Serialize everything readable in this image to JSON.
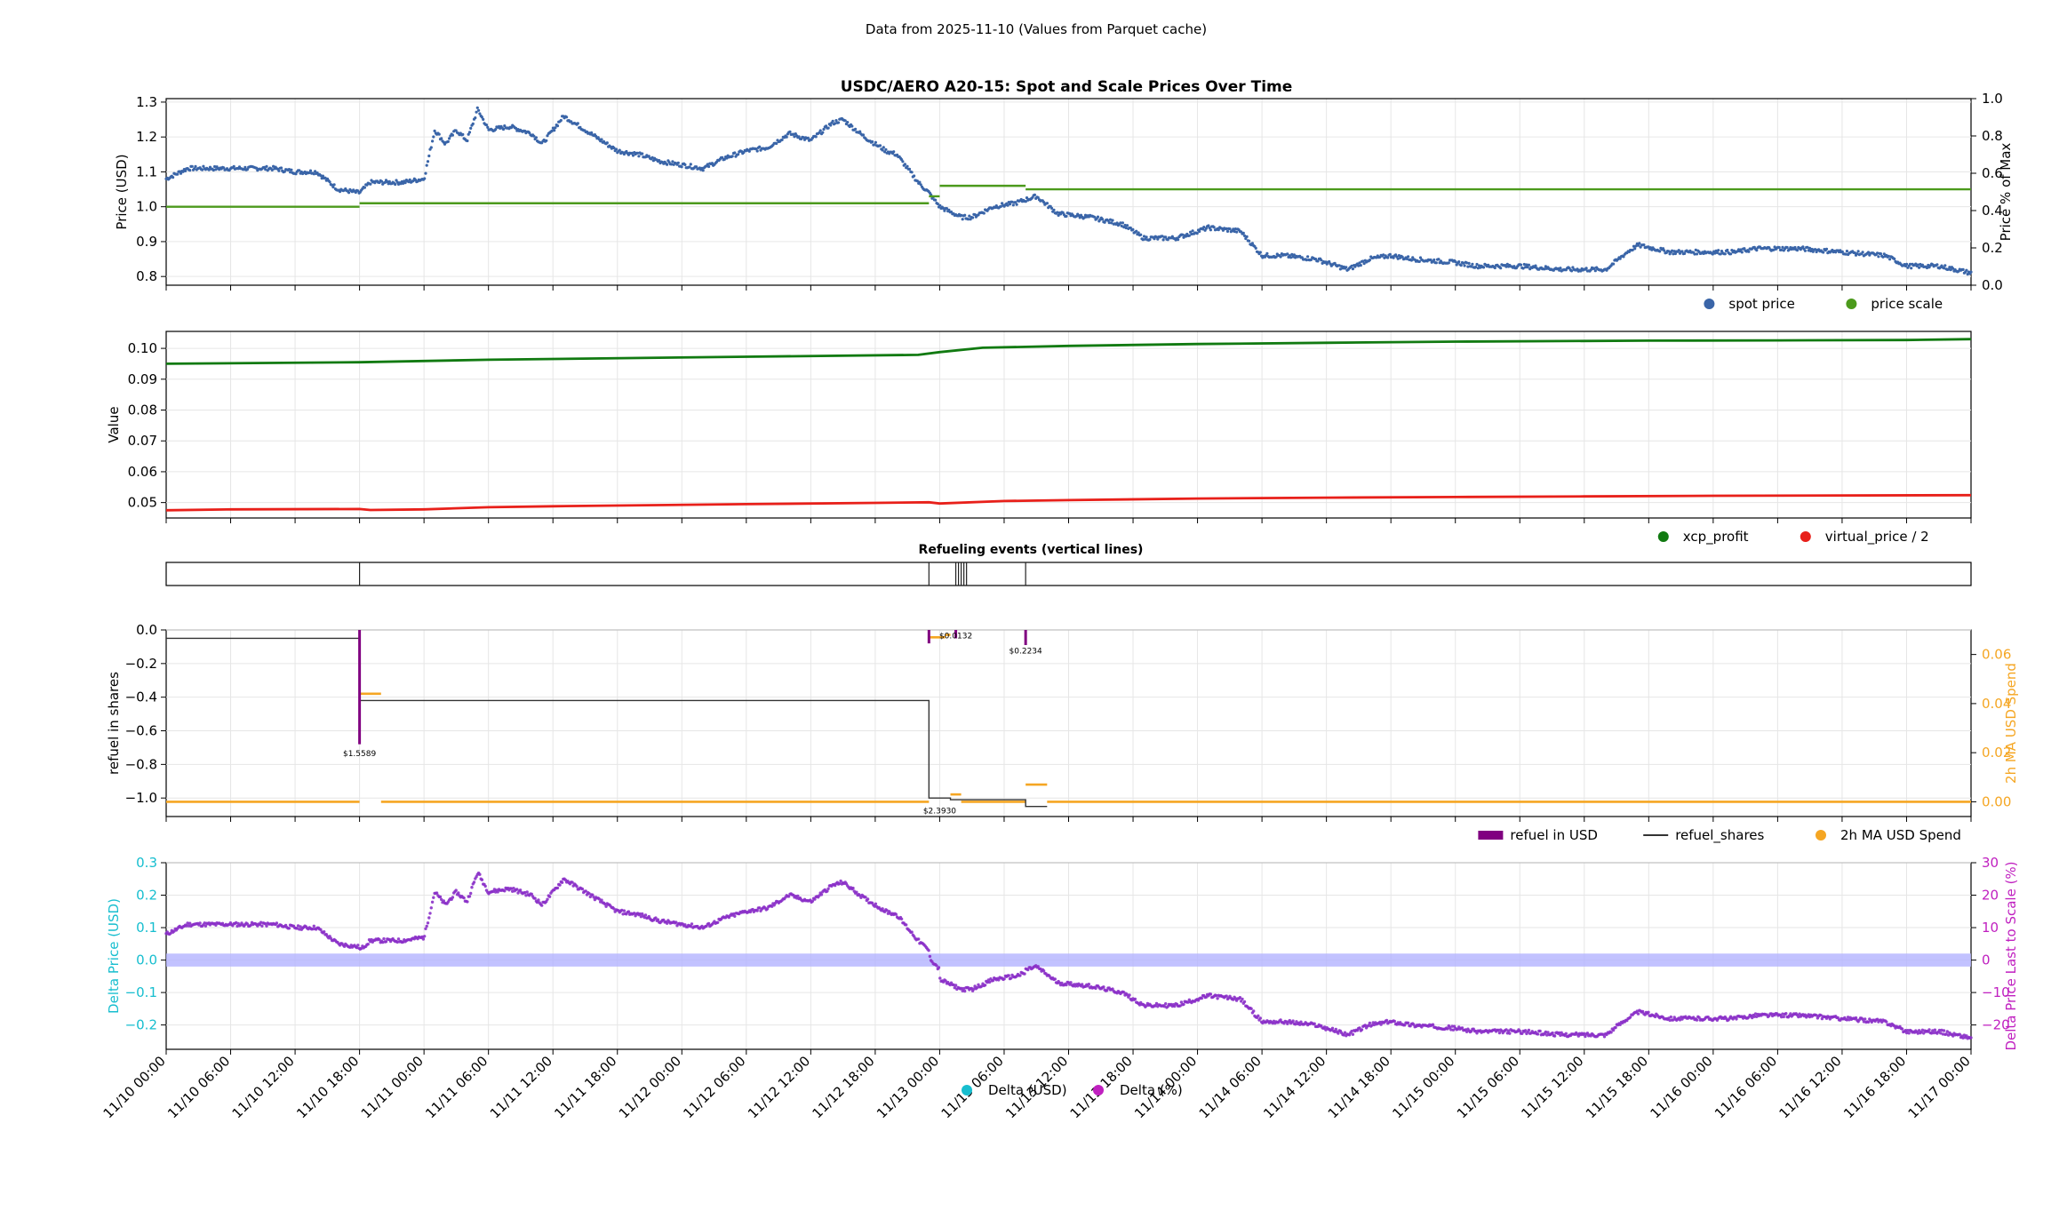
{
  "figure": {
    "suptitle": "Data from 2025-11-10 (Values from Parquet cache)",
    "x_start": "2025-11-10 00:00",
    "x_end": "2025-11-17 00:00",
    "x_tick_labels": [
      "11/10 00:00",
      "11/10 06:00",
      "11/10 12:00",
      "11/10 18:00",
      "11/11 00:00",
      "11/11 06:00",
      "11/11 12:00",
      "11/11 18:00",
      "11/12 00:00",
      "11/12 06:00",
      "11/12 12:00",
      "11/12 18:00",
      "11/13 00:00",
      "11/13 06:00",
      "11/13 12:00",
      "11/13 18:00",
      "11/14 00:00",
      "11/14 06:00",
      "11/14 12:00",
      "11/14 18:00",
      "11/15 00:00",
      "11/15 06:00",
      "11/15 12:00",
      "11/15 18:00",
      "11/16 00:00",
      "11/16 06:00",
      "11/16 12:00",
      "11/16 18:00",
      "11/17 00:00"
    ]
  },
  "chart_data": [
    {
      "type": "scatter",
      "title": "USDC/AERO A20-15: Spot and Scale Prices Over Time",
      "ylabel": "Price (USD)",
      "ylabel_right": "Price % of Max",
      "ylim": [
        0.775,
        1.31
      ],
      "y_ticks": [
        "0.8",
        "0.9",
        "1.0",
        "1.1",
        "1.2",
        "1.3"
      ],
      "ylim_right": [
        0,
        1
      ],
      "y_ticks_right": [
        "0.0",
        "0.2",
        "0.4",
        "0.6",
        "0.8",
        "1.0"
      ],
      "grid": true,
      "legend_position": "below-right",
      "series": [
        {
          "name": "spot price",
          "color": "#3a65a8",
          "points": [
            [
              "11/10 00:00",
              1.08
            ],
            [
              "11/10 02:00",
              1.11
            ],
            [
              "11/10 04:00",
              1.11
            ],
            [
              "11/10 06:00",
              1.11
            ],
            [
              "11/10 08:00",
              1.11
            ],
            [
              "11/10 10:00",
              1.11
            ],
            [
              "11/10 12:00",
              1.1
            ],
            [
              "11/10 14:00",
              1.1
            ],
            [
              "11/10 16:00",
              1.05
            ],
            [
              "11/10 18:00",
              1.04
            ],
            [
              "11/10 19:00",
              1.07
            ],
            [
              "11/10 22:00",
              1.07
            ],
            [
              "11/11 00:00",
              1.08
            ],
            [
              "11/11 01:00",
              1.22
            ],
            [
              "11/11 02:00",
              1.18
            ],
            [
              "11/11 03:00",
              1.22
            ],
            [
              "11/11 04:00",
              1.19
            ],
            [
              "11/11 05:00",
              1.28
            ],
            [
              "11/11 06:00",
              1.22
            ],
            [
              "11/11 08:00",
              1.23
            ],
            [
              "11/11 10:00",
              1.21
            ],
            [
              "11/11 11:00",
              1.18
            ],
            [
              "11/11 13:00",
              1.26
            ],
            [
              "11/11 14:00",
              1.24
            ],
            [
              "11/11 16:00",
              1.2
            ],
            [
              "11/11 18:00",
              1.16
            ],
            [
              "11/11 20:00",
              1.15
            ],
            [
              "11/11 22:00",
              1.13
            ],
            [
              "11/12 00:00",
              1.12
            ],
            [
              "11/12 02:00",
              1.11
            ],
            [
              "11/12 04:00",
              1.14
            ],
            [
              "11/12 06:00",
              1.16
            ],
            [
              "11/12 08:00",
              1.17
            ],
            [
              "11/12 10:00",
              1.21
            ],
            [
              "11/12 12:00",
              1.19
            ],
            [
              "11/12 14:00",
              1.24
            ],
            [
              "11/12 15:00",
              1.25
            ],
            [
              "11/12 17:00",
              1.2
            ],
            [
              "11/12 19:00",
              1.16
            ],
            [
              "11/12 20:00",
              1.15
            ],
            [
              "11/12 22:00",
              1.07
            ],
            [
              "11/12 23:00",
              1.04
            ],
            [
              "11/13 00:00",
              1.0
            ],
            [
              "11/13 02:00",
              0.97
            ],
            [
              "11/13 03:00",
              0.97
            ],
            [
              "11/13 05:00",
              1.0
            ],
            [
              "11/13 07:00",
              1.01
            ],
            [
              "11/13 09:00",
              1.03
            ],
            [
              "11/13 11:00",
              0.98
            ],
            [
              "11/13 14:00",
              0.97
            ],
            [
              "11/13 17:00",
              0.95
            ],
            [
              "11/13 19:00",
              0.91
            ],
            [
              "11/13 22:00",
              0.91
            ],
            [
              "11/14 01:00",
              0.94
            ],
            [
              "11/14 04:00",
              0.93
            ],
            [
              "11/14 06:00",
              0.86
            ],
            [
              "11/14 08:00",
              0.86
            ],
            [
              "11/14 11:00",
              0.85
            ],
            [
              "11/14 14:00",
              0.82
            ],
            [
              "11/14 16:00",
              0.85
            ],
            [
              "11/14 18:00",
              0.86
            ],
            [
              "11/14 20:00",
              0.85
            ],
            [
              "11/15 00:00",
              0.84
            ],
            [
              "11/15 02:00",
              0.83
            ],
            [
              "11/15 06:00",
              0.83
            ],
            [
              "11/15 10:00",
              0.82
            ],
            [
              "11/15 14:00",
              0.82
            ],
            [
              "11/15 16:00",
              0.87
            ],
            [
              "11/15 17:00",
              0.89
            ],
            [
              "11/15 20:00",
              0.87
            ],
            [
              "11/16 00:00",
              0.87
            ],
            [
              "11/16 02:00",
              0.87
            ],
            [
              "11/16 04:00",
              0.88
            ],
            [
              "11/16 08:00",
              0.88
            ],
            [
              "11/16 12:00",
              0.87
            ],
            [
              "11/16 16:00",
              0.86
            ],
            [
              "11/16 18:00",
              0.83
            ],
            [
              "11/16 21:00",
              0.83
            ],
            [
              "11/17 00:00",
              0.81
            ]
          ]
        },
        {
          "name": "price scale",
          "color": "#4c9a1c",
          "steps": [
            [
              "11/10 00:00",
              1.0
            ],
            [
              "11/10 18:00",
              1.01
            ],
            [
              "11/12 23:00",
              1.03
            ],
            [
              "11/13 00:00",
              1.06
            ],
            [
              "11/13 01:00",
              1.06
            ],
            [
              "11/13 08:00",
              1.05
            ],
            [
              "11/17 00:00",
              1.05
            ]
          ]
        }
      ]
    },
    {
      "type": "line",
      "ylabel": "Value",
      "ylim": [
        0.045,
        0.1055
      ],
      "y_ticks": [
        "0.05",
        "0.06",
        "0.07",
        "0.08",
        "0.09",
        "0.10"
      ],
      "grid": true,
      "legend_position": "below-right",
      "series": [
        {
          "name": "xcp_profit",
          "color": "#117a11",
          "points": [
            [
              "11/10 00:00",
              0.095
            ],
            [
              "11/10 18:00",
              0.0955
            ],
            [
              "11/11 06:00",
              0.0963
            ],
            [
              "11/12 06:00",
              0.0973
            ],
            [
              "11/12 22:00",
              0.0979
            ],
            [
              "11/13 00:00",
              0.0988
            ],
            [
              "11/13 04:00",
              0.1002
            ],
            [
              "11/13 12:00",
              0.1008
            ],
            [
              "11/14 00:00",
              0.1014
            ],
            [
              "11/14 12:00",
              0.1018
            ],
            [
              "11/15 00:00",
              0.1022
            ],
            [
              "11/15 18:00",
              0.1025
            ],
            [
              "11/16 06:00",
              0.1026
            ],
            [
              "11/16 18:00",
              0.1027
            ],
            [
              "11/17 00:00",
              0.103
            ]
          ]
        },
        {
          "name": "virtual_price / 2",
          "color": "#e8201a",
          "points": [
            [
              "11/10 00:00",
              0.0475
            ],
            [
              "11/10 06:00",
              0.0478
            ],
            [
              "11/10 18:00",
              0.0479
            ],
            [
              "11/10 19:00",
              0.0476
            ],
            [
              "11/11 00:00",
              0.0478
            ],
            [
              "11/11 06:00",
              0.0485
            ],
            [
              "11/11 12:00",
              0.0488
            ],
            [
              "11/12 06:00",
              0.0495
            ],
            [
              "11/12 18:00",
              0.0499
            ],
            [
              "11/12 23:00",
              0.0501
            ],
            [
              "11/13 00:00",
              0.0497
            ],
            [
              "11/13 06:00",
              0.0505
            ],
            [
              "11/13 12:00",
              0.0508
            ],
            [
              "11/14 00:00",
              0.0513
            ],
            [
              "11/14 12:00",
              0.0516
            ],
            [
              "11/15 00:00",
              0.0518
            ],
            [
              "11/15 12:00",
              0.052
            ],
            [
              "11/16 00:00",
              0.0522
            ],
            [
              "11/17 00:00",
              0.0524
            ]
          ]
        }
      ]
    },
    {
      "type": "event-strip",
      "title": "Refueling events (vertical lines)",
      "events": [
        "11/10 18:00",
        "11/12 23:00",
        "11/13 01:30",
        "11/13 01:45",
        "11/13 02:00",
        "11/13 02:15",
        "11/13 02:30",
        "11/13 08:00"
      ]
    },
    {
      "type": "bar",
      "ylabel": "refuel in shares",
      "ylabel_right": "2h MA USD Spend",
      "ylim": [
        -1.11,
        0.0
      ],
      "y_ticks": [
        "0.0",
        "−0.2",
        "−0.4",
        "−0.6",
        "−0.8",
        "−1.0"
      ],
      "ylim_right": [
        -0.006,
        0.07
      ],
      "y_ticks_right": [
        "0.00",
        "0.02",
        "0.04",
        "0.06"
      ],
      "grid": true,
      "legend_position": "below-right",
      "series": [
        {
          "name": "refuel in USD",
          "color": "#800080",
          "bars": [
            [
              "11/10 18:00",
              -0.68
            ],
            [
              "11/12 23:00",
              -0.08
            ],
            [
              "11/13 01:30",
              -0.05
            ],
            [
              "11/13 08:00",
              -0.09
            ]
          ]
        },
        {
          "name": "refuel_shares",
          "color": "#333333",
          "steps": [
            [
              "11/10 00:00",
              -0.05
            ],
            [
              "11/10 18:00",
              -0.42
            ],
            [
              "11/12 23:00",
              -1.0
            ],
            [
              "11/13 01:00",
              -1.01
            ],
            [
              "11/13 08:00",
              -1.05
            ],
            [
              "11/13 10:00",
              -1.05
            ]
          ]
        },
        {
          "name": "2h MA USD Spend",
          "color": "#f5a623",
          "segments": [
            [
              "11/10 00:00",
              "11/10 18:00",
              0.0
            ],
            [
              "11/10 18:00",
              "11/10 20:00",
              0.044
            ],
            [
              "11/10 20:00",
              "11/12 23:00",
              0.0
            ],
            [
              "11/12 23:00",
              "11/13 00:30",
              0.067
            ],
            [
              "11/13 00:30",
              "11/13 01:00",
              0.068
            ],
            [
              "11/13 01:00",
              "11/13 02:00",
              0.003
            ],
            [
              "11/13 02:00",
              "11/13 08:00",
              0.0
            ],
            [
              "11/13 08:00",
              "11/13 10:00",
              0.007
            ],
            [
              "11/13 10:00",
              "11/17 00:00",
              0.0
            ]
          ]
        }
      ],
      "annotations": [
        {
          "text": "$1.5589",
          "x": "11/10 18:00",
          "y": -0.73
        },
        {
          "text": "$2.3930",
          "x": "11/13 00:00",
          "y": -1.07
        },
        {
          "text": "$0.0132",
          "x": "11/13 01:30",
          "y": -0.03
        },
        {
          "text": "$0.2234",
          "x": "11/13 08:00",
          "y": -0.12
        }
      ]
    },
    {
      "type": "scatter",
      "ylabel": "Delta Price (USD)",
      "ylabel_right": "Delta Price Last to Scale (%)",
      "ylim": [
        -0.275,
        0.3
      ],
      "y_ticks": [
        "0.3",
        "0.2",
        "0.1",
        "0.0",
        "−0.1",
        "−0.2"
      ],
      "ylim_right": [
        -27.5,
        30
      ],
      "y_ticks_right": [
        "30",
        "20",
        "10",
        "0",
        "−10",
        "−20"
      ],
      "band": [
        -0.02,
        0.02
      ],
      "grid": true,
      "legend_position": "bottom-center",
      "series": [
        {
          "name": "Delta (USD)",
          "color": "#17becf"
        },
        {
          "name": "Delta (%)",
          "color": "#c020c0"
        }
      ]
    }
  ],
  "colors": {
    "spot": "#3a65a8",
    "scale": "#4c9a1c",
    "xcp": "#117a11",
    "vprice": "#e8201a",
    "refuel_usd": "#800080",
    "shares": "#333333",
    "ma": "#f5a623",
    "delta_usd": "#17becf",
    "delta_pct": "#c020c0",
    "band": "#b3b3ff"
  }
}
